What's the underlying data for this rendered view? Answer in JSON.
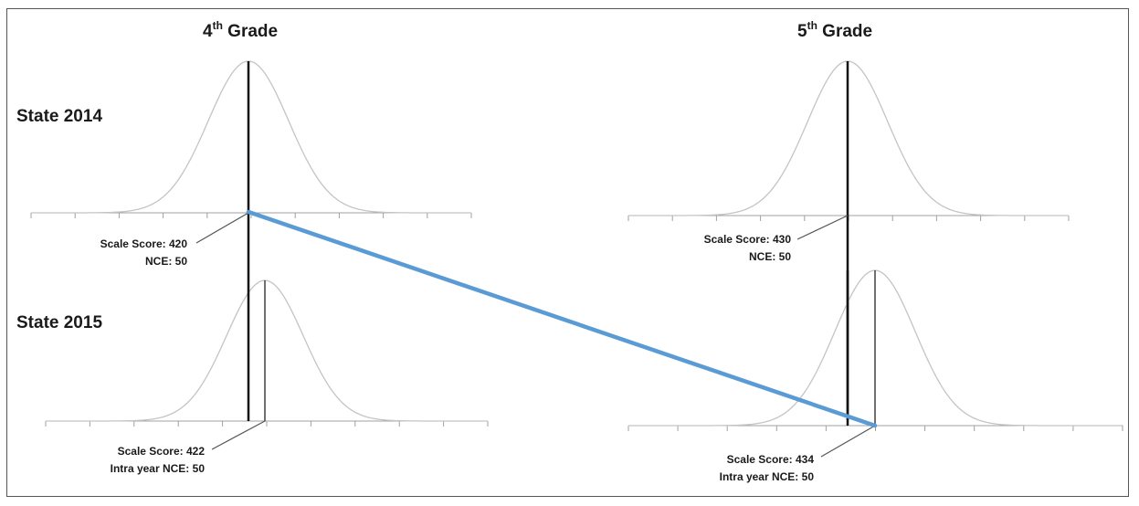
{
  "columns": {
    "left": {
      "title_main": "4",
      "title_sup": "th",
      "title_rest": " Grade"
    },
    "right": {
      "title_main": "5",
      "title_sup": "th",
      "title_rest": " Grade"
    }
  },
  "rows": {
    "top": "State 2014",
    "bottom": "State 2015"
  },
  "annotations": {
    "g4_2014": {
      "line1": "Scale Score: 420",
      "line2": "NCE: 50"
    },
    "g5_2014": {
      "line1": "Scale Score: 430",
      "line2": "NCE: 50"
    },
    "g4_2015": {
      "line1": "Scale Score: 422",
      "line2": "Intra year NCE: 50"
    },
    "g5_2015": {
      "line1": "Scale Score: 434",
      "line2": "Intra year NCE: 50"
    }
  },
  "colors": {
    "curve": "#c4c4c4",
    "axis": "#a0a0a0",
    "median": "#111111",
    "connector": "#5b9bd5",
    "pointer": "#555555"
  }
}
